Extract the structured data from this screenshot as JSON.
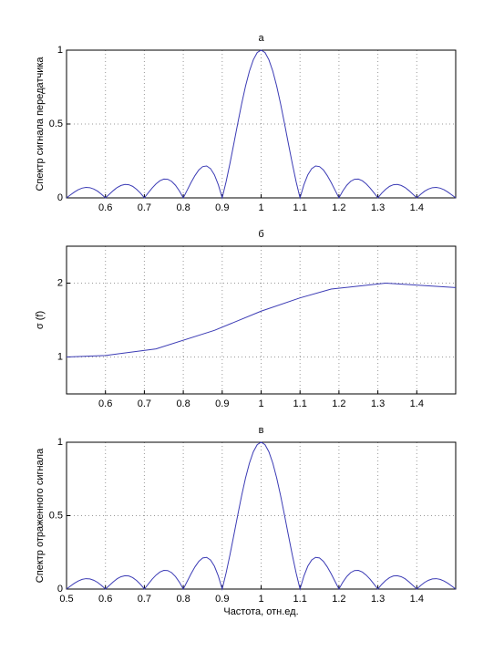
{
  "chart_data": [
    {
      "type": "line",
      "title": "а",
      "ylabel": "Спектр сигнала передатчика",
      "color": "#3b3bb5",
      "grid": true,
      "xlim": [
        0.5,
        1.5
      ],
      "ylim": [
        0,
        1
      ],
      "xticks": [
        0.6,
        0.7,
        0.8,
        0.9,
        1,
        1.1,
        1.2,
        1.3,
        1.4
      ],
      "yticks": [
        0,
        0.5,
        1
      ],
      "x": [
        0.5,
        0.51,
        0.52,
        0.53,
        0.54,
        0.55,
        0.56,
        0.57,
        0.58,
        0.59,
        0.6,
        0.61,
        0.62,
        0.63,
        0.64,
        0.65,
        0.66,
        0.67,
        0.68,
        0.69,
        0.7,
        0.71,
        0.72,
        0.73,
        0.74,
        0.75,
        0.76,
        0.77,
        0.78,
        0.79,
        0.8,
        0.81,
        0.82,
        0.83,
        0.84,
        0.85,
        0.86,
        0.87,
        0.88,
        0.89,
        0.9,
        0.91,
        0.92,
        0.93,
        0.94,
        0.95,
        0.96,
        0.97,
        0.98,
        0.99,
        1,
        1.01,
        1.02,
        1.03,
        1.04,
        1.05,
        1.06,
        1.07,
        1.08,
        1.09,
        1.1,
        1.11,
        1.12,
        1.13,
        1.14,
        1.15,
        1.16,
        1.17,
        1.18,
        1.19,
        1.2,
        1.21,
        1.22,
        1.23,
        1.24,
        1.25,
        1.26,
        1.27,
        1.28,
        1.29,
        1.3,
        1.31,
        1.32,
        1.33,
        1.34,
        1.35,
        1.36,
        1.37,
        1.38,
        1.39,
        1.4,
        1.41,
        1.42,
        1.43,
        1.44,
        1.45,
        1.46,
        1.47,
        1.48,
        1.49,
        1.5
      ],
      "values": [
        0,
        0.02,
        0.039,
        0.055,
        0.066,
        0.071,
        0.069,
        0.06,
        0.045,
        0.024,
        0,
        0.025,
        0.049,
        0.07,
        0.084,
        0.091,
        0.089,
        0.078,
        0.058,
        0.032,
        0,
        0.034,
        0.067,
        0.095,
        0.116,
        0.127,
        0.126,
        0.112,
        0.085,
        0.047,
        0,
        0.052,
        0.104,
        0.151,
        0.189,
        0.212,
        0.216,
        0.198,
        0.156,
        0.089,
        0,
        0.109,
        0.234,
        0.368,
        0.505,
        0.637,
        0.757,
        0.858,
        0.935,
        0.984,
        1,
        0.984,
        0.935,
        0.858,
        0.757,
        0.637,
        0.505,
        0.368,
        0.234,
        0.109,
        0,
        0.089,
        0.156,
        0.198,
        0.216,
        0.212,
        0.189,
        0.151,
        0.104,
        0.052,
        0,
        0.047,
        0.085,
        0.112,
        0.126,
        0.127,
        0.116,
        0.095,
        0.067,
        0.034,
        0,
        0.032,
        0.058,
        0.078,
        0.089,
        0.091,
        0.084,
        0.07,
        0.049,
        0.025,
        0,
        0.024,
        0.045,
        0.06,
        0.069,
        0.071,
        0.066,
        0.055,
        0.039,
        0.02,
        0
      ]
    },
    {
      "type": "line",
      "title": "б",
      "ylabel": "σ (f)",
      "color": "#3b3bb5",
      "grid": true,
      "xlim": [
        0.5,
        1.5
      ],
      "ylim": [
        0.5,
        2.5
      ],
      "xticks": [
        0.6,
        0.7,
        0.8,
        0.9,
        1,
        1.1,
        1.2,
        1.3,
        1.4
      ],
      "yticks": [
        1,
        2
      ],
      "x": [
        0.5,
        0.6,
        0.73,
        0.88,
        1.0,
        1.1,
        1.18,
        1.32,
        1.5
      ],
      "values": [
        1.0,
        1.02,
        1.11,
        1.36,
        1.62,
        1.8,
        1.92,
        2.0,
        1.94
      ]
    },
    {
      "type": "line",
      "title": "в",
      "ylabel": "Спектр отраженного сигнала",
      "xlabel": "Частота, отн.ед.",
      "color": "#3b3bb5",
      "grid": true,
      "xlim": [
        0.5,
        1.5
      ],
      "ylim": [
        0,
        1
      ],
      "xticks": [
        0.5,
        0.6,
        0.7,
        0.8,
        0.9,
        1,
        1.1,
        1.2,
        1.3,
        1.4
      ],
      "yticks": [
        0,
        0.5,
        1
      ],
      "x": [
        0.5,
        0.51,
        0.52,
        0.53,
        0.54,
        0.55,
        0.56,
        0.57,
        0.58,
        0.59,
        0.6,
        0.61,
        0.62,
        0.63,
        0.64,
        0.65,
        0.66,
        0.67,
        0.68,
        0.69,
        0.7,
        0.71,
        0.72,
        0.73,
        0.74,
        0.75,
        0.76,
        0.77,
        0.78,
        0.79,
        0.8,
        0.81,
        0.82,
        0.83,
        0.84,
        0.85,
        0.86,
        0.87,
        0.88,
        0.89,
        0.9,
        0.91,
        0.92,
        0.93,
        0.94,
        0.95,
        0.96,
        0.97,
        0.98,
        0.99,
        1,
        1.01,
        1.02,
        1.03,
        1.04,
        1.05,
        1.06,
        1.07,
        1.08,
        1.09,
        1.1,
        1.11,
        1.12,
        1.13,
        1.14,
        1.15,
        1.16,
        1.17,
        1.18,
        1.19,
        1.2,
        1.21,
        1.22,
        1.23,
        1.24,
        1.25,
        1.26,
        1.27,
        1.28,
        1.29,
        1.3,
        1.31,
        1.32,
        1.33,
        1.34,
        1.35,
        1.36,
        1.37,
        1.38,
        1.39,
        1.4,
        1.41,
        1.42,
        1.43,
        1.44,
        1.45,
        1.46,
        1.47,
        1.48,
        1.49,
        1.5
      ],
      "values": [
        0,
        0.02,
        0.039,
        0.055,
        0.066,
        0.071,
        0.069,
        0.06,
        0.045,
        0.024,
        0,
        0.025,
        0.049,
        0.07,
        0.084,
        0.091,
        0.089,
        0.078,
        0.058,
        0.032,
        0,
        0.034,
        0.067,
        0.095,
        0.116,
        0.127,
        0.126,
        0.112,
        0.085,
        0.047,
        0,
        0.052,
        0.104,
        0.151,
        0.189,
        0.212,
        0.216,
        0.198,
        0.156,
        0.089,
        0,
        0.109,
        0.234,
        0.368,
        0.505,
        0.637,
        0.757,
        0.858,
        0.935,
        0.984,
        1,
        0.984,
        0.935,
        0.858,
        0.757,
        0.637,
        0.505,
        0.368,
        0.234,
        0.109,
        0,
        0.089,
        0.156,
        0.198,
        0.216,
        0.212,
        0.189,
        0.151,
        0.104,
        0.052,
        0,
        0.047,
        0.085,
        0.112,
        0.126,
        0.127,
        0.116,
        0.095,
        0.067,
        0.034,
        0,
        0.032,
        0.058,
        0.078,
        0.089,
        0.091,
        0.084,
        0.07,
        0.049,
        0.025,
        0,
        0.024,
        0.045,
        0.06,
        0.069,
        0.071,
        0.066,
        0.055,
        0.039,
        0.02,
        0
      ]
    }
  ]
}
